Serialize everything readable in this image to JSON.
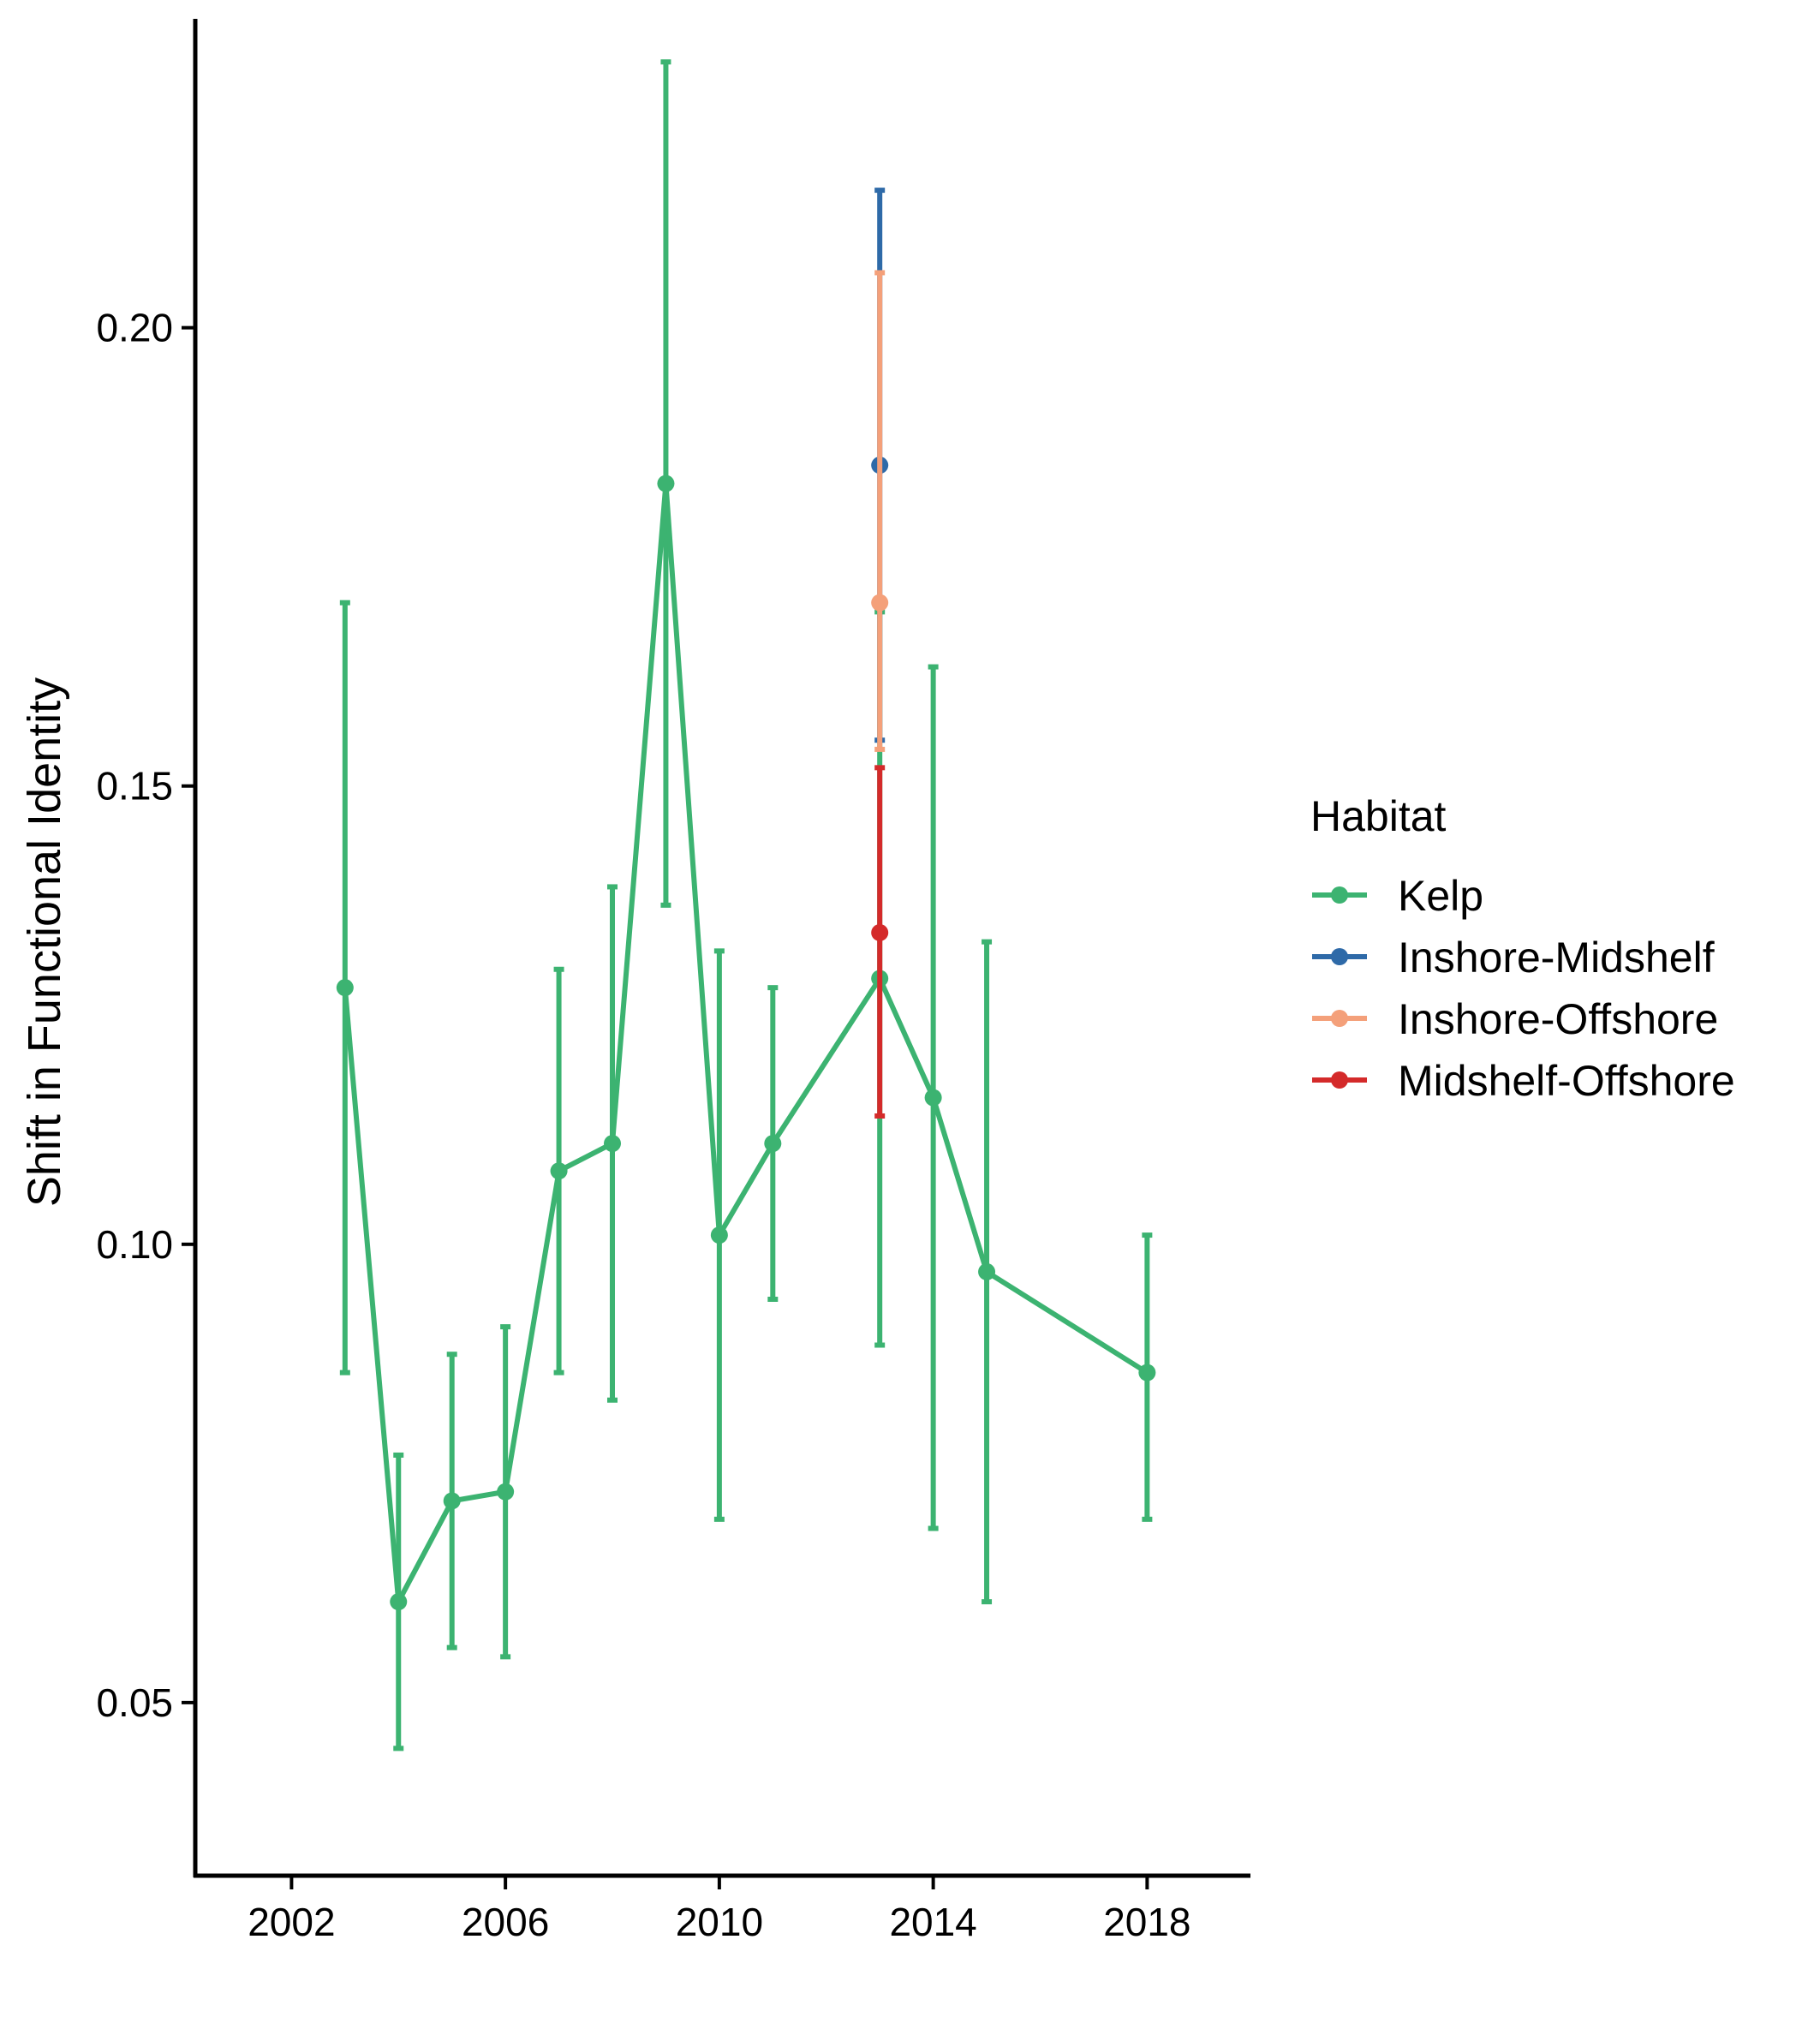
{
  "chart_data": {
    "type": "line",
    "title": "",
    "xlabel": "",
    "ylabel": "Shift in Functional Identity",
    "xlim": [
      2000.2,
      2019.9
    ],
    "ylim": [
      0.0313,
      0.2337
    ],
    "x_ticks": [
      2002,
      2006,
      2010,
      2014,
      2018
    ],
    "y_ticks": [
      0.05,
      0.1,
      0.15,
      0.2
    ],
    "y_tick_labels": [
      "0.05",
      "0.10",
      "0.15",
      "0.20"
    ],
    "x_tick_labels": [
      "2002",
      "2006",
      "2010",
      "2014",
      "2018"
    ],
    "grid": false,
    "legend": {
      "title": "Habitat",
      "position": "right"
    },
    "series": [
      {
        "name": "Kelp",
        "color": "#3CB371",
        "points": [
          {
            "x": 2003,
            "y": 0.128,
            "lo": 0.086,
            "hi": 0.17
          },
          {
            "x": 2004,
            "y": 0.061,
            "lo": 0.045,
            "hi": 0.077
          },
          {
            "x": 2005,
            "y": 0.072,
            "lo": 0.056,
            "hi": 0.088
          },
          {
            "x": 2006,
            "y": 0.073,
            "lo": 0.055,
            "hi": 0.091
          },
          {
            "x": 2007,
            "y": 0.108,
            "lo": 0.086,
            "hi": 0.13
          },
          {
            "x": 2008,
            "y": 0.111,
            "lo": 0.083,
            "hi": 0.139
          },
          {
            "x": 2009,
            "y": 0.183,
            "lo": 0.137,
            "hi": 0.229
          },
          {
            "x": 2010,
            "y": 0.101,
            "lo": 0.07,
            "hi": 0.132
          },
          {
            "x": 2011,
            "y": 0.111,
            "lo": 0.094,
            "hi": 0.128
          },
          {
            "x": 2013,
            "y": 0.129,
            "lo": 0.089,
            "hi": 0.169
          },
          {
            "x": 2014,
            "y": 0.116,
            "lo": 0.069,
            "hi": 0.163
          },
          {
            "x": 2015,
            "y": 0.097,
            "lo": 0.061,
            "hi": 0.133
          },
          {
            "x": 2018,
            "y": 0.086,
            "lo": 0.07,
            "hi": 0.101
          }
        ]
      },
      {
        "name": "Inshore-Midshelf",
        "color": "#2E6AA8",
        "points": [
          {
            "x": 2013,
            "y": 0.185,
            "lo": 0.155,
            "hi": 0.215
          }
        ]
      },
      {
        "name": "Inshore-Offshore",
        "color": "#F4A07A",
        "points": [
          {
            "x": 2013,
            "y": 0.17,
            "lo": 0.154,
            "hi": 0.206
          }
        ]
      },
      {
        "name": "Midshelf-Offshore",
        "color": "#D42A2A",
        "points": [
          {
            "x": 2013,
            "y": 0.134,
            "lo": 0.114,
            "hi": 0.152
          }
        ]
      }
    ]
  }
}
